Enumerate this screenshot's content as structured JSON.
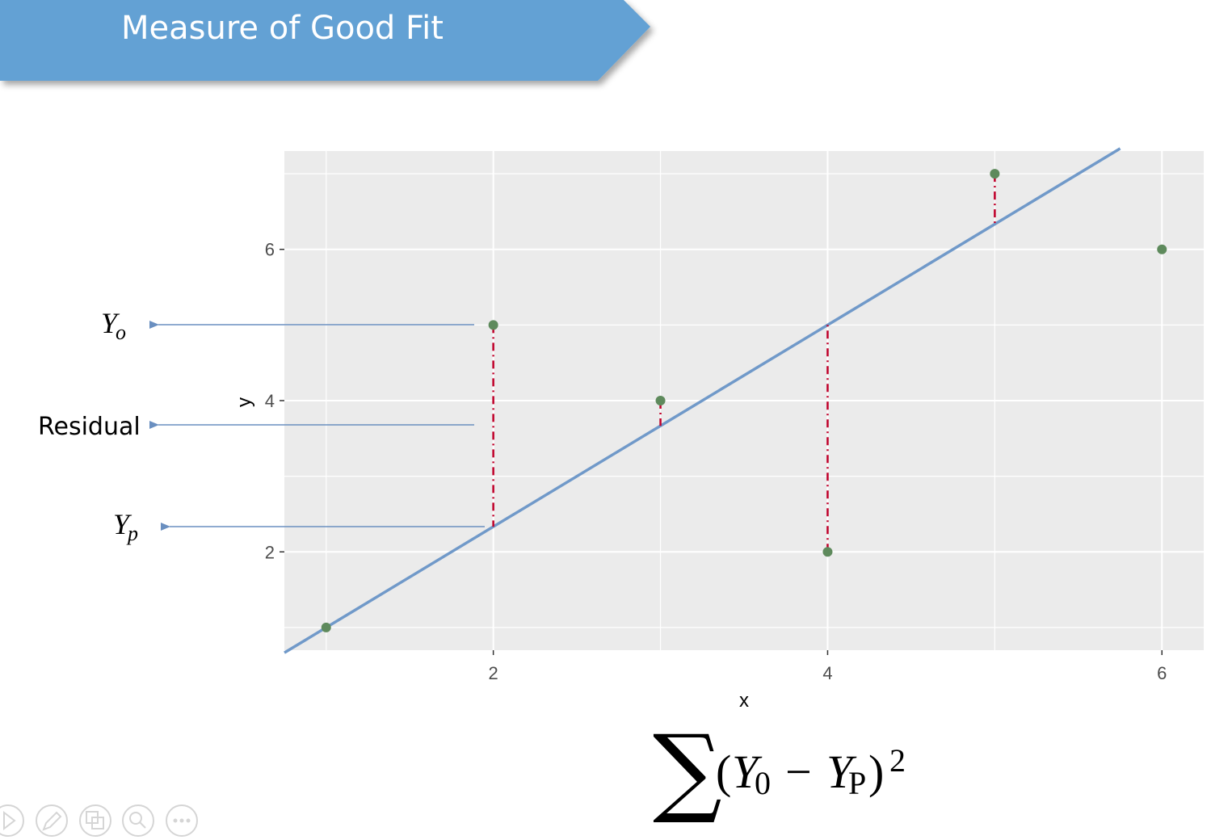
{
  "slide": {
    "title": "Measure of Good Fit",
    "colors": {
      "banner": "#63a1d4",
      "panel_background": "#ebebeb",
      "grid_line": "#ffffff",
      "regression_line": "#7099c9",
      "point": "#5e8a5c",
      "residual": "#c0002a",
      "annotation_arrow": "#6a8fc0"
    }
  },
  "chart_data": {
    "type": "scatter",
    "xlabel": "x",
    "ylabel": "y",
    "xlim": [
      0.75,
      6.25
    ],
    "ylim": [
      0.7,
      7.3
    ],
    "xticks": [
      2,
      4,
      6
    ],
    "yticks": [
      2,
      4,
      6
    ],
    "grid": true,
    "points": [
      {
        "x": 1,
        "y": 1
      },
      {
        "x": 2,
        "y": 5
      },
      {
        "x": 3,
        "y": 4
      },
      {
        "x": 4,
        "y": 2
      },
      {
        "x": 5,
        "y": 7
      },
      {
        "x": 6,
        "y": 6
      }
    ],
    "regression_line": {
      "intercept": -0.3333,
      "slope": 1.3333,
      "x_range": [
        0.75,
        5.75
      ]
    },
    "residuals": [
      {
        "x": 2,
        "observed": 5,
        "predicted": 2.3333
      },
      {
        "x": 3,
        "observed": 4,
        "predicted": 3.6667
      },
      {
        "x": 4,
        "observed": 2,
        "predicted": 5.0
      },
      {
        "x": 5,
        "observed": 7,
        "predicted": 6.3333
      }
    ]
  },
  "annotations": {
    "y_observed": {
      "main": "Y",
      "sub": "o"
    },
    "residual": "Residual",
    "y_predicted": {
      "main": "Y",
      "sub": "p"
    }
  },
  "formula": {
    "sum_symbol": "∑",
    "open_paren": "(",
    "y1": "Y",
    "sub1": "0",
    "minus": "−",
    "y2": "Y",
    "sub2": "P",
    "close_paren": ")",
    "exponent": "2"
  },
  "toolbar": {
    "icons": [
      "play-icon",
      "pen-icon",
      "slides-icon",
      "zoom-icon",
      "more-icon"
    ]
  }
}
